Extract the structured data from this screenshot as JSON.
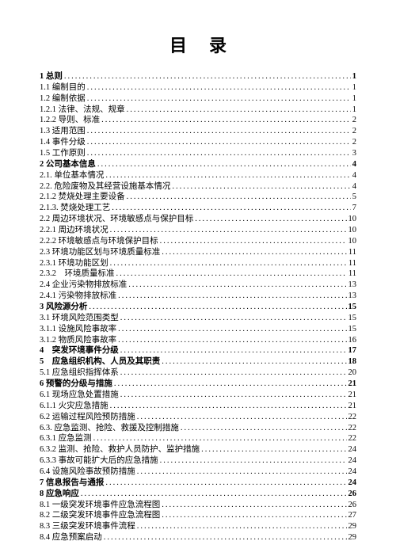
{
  "title": "目录",
  "entries": [
    {
      "label": "1 总则",
      "page": "1",
      "bold": true
    },
    {
      "label": "1.1 编制目的",
      "page": "1",
      "bold": false
    },
    {
      "label": "1.2 编制依据",
      "page": "1",
      "bold": false
    },
    {
      "label": "1.2.1 法律、法规、规章",
      "page": "1",
      "bold": false
    },
    {
      "label": "1.2.2 导则、标准",
      "page": "2",
      "bold": false
    },
    {
      "label": "1.3 适用范围",
      "page": "2",
      "bold": false
    },
    {
      "label": "1.4 事件分级",
      "page": "2",
      "bold": false
    },
    {
      "label": "1.5 工作原则",
      "page": "3",
      "bold": false
    },
    {
      "label": "2 公司基本信息",
      "page": "4",
      "bold": true
    },
    {
      "label": "2.1. 单位基本情况",
      "page": "4",
      "bold": false
    },
    {
      "label": "2.2. 危险废物及其经营设施基本情况",
      "page": "4",
      "bold": false
    },
    {
      "label": "2.1.2 焚烧处理主要设备",
      "page": "5",
      "bold": false
    },
    {
      "label": "2.1.3. 焚烧处理工艺",
      "page": "7",
      "bold": false
    },
    {
      "label": "2.2 周边环境状况、环境敏感点与保护目标",
      "page": "10",
      "bold": false
    },
    {
      "label": "2.2.1 周边环境状况",
      "page": "10",
      "bold": false
    },
    {
      "label": "2.2.2 环境敏感点与环境保护目标",
      "page": "10",
      "bold": false
    },
    {
      "label": "2.3 环境功能区划与环境质量标准",
      "page": "11",
      "bold": false
    },
    {
      "label": "2.3.1 环境功能区划",
      "page": "11",
      "bold": false
    },
    {
      "label": "2.3.2　环境质量标准",
      "page": "11",
      "bold": false
    },
    {
      "label": "2.4 企业污染物排放标准",
      "page": "13",
      "bold": false
    },
    {
      "label": "2.4.1 污染物排放标准",
      "page": "13",
      "bold": false
    },
    {
      "label": "3 风险源分析",
      "page": "15",
      "bold": true
    },
    {
      "label": "3.1 环境风险范围类型",
      "page": "15",
      "bold": false
    },
    {
      "label": "3.1.1 设施风险事故率",
      "page": "15",
      "bold": false
    },
    {
      "label": "3.1.2 物质风险事故率",
      "page": "16",
      "bold": false
    },
    {
      "label": "4　突发环境事件分级",
      "page": "17",
      "bold": true
    },
    {
      "label": "5　应急组织机构、人员及其职责",
      "page": "18",
      "bold": true
    },
    {
      "label": "5.1 应急组织指挥体系",
      "page": "20",
      "bold": false
    },
    {
      "label": "6 预警的分级与措施",
      "page": "21",
      "bold": true
    },
    {
      "label": "6.1 现场应急处置措施",
      "page": "21",
      "bold": false
    },
    {
      "label": "6.1.1 火灾应急措施",
      "page": "21",
      "bold": false
    },
    {
      "label": "6.2 运输过程风险预防措施",
      "page": "22",
      "bold": false
    },
    {
      "label": "6.3. 应急监测、抢险、救援及控制措施",
      "page": "22",
      "bold": false
    },
    {
      "label": "6.3.1 应急监测",
      "page": "22",
      "bold": false
    },
    {
      "label": "6.3.2 监测、抢险、救护人员防护、监护措施",
      "page": "24",
      "bold": false
    },
    {
      "label": "6.3.3 事故可能扩大后的应急措施",
      "page": "24",
      "bold": false
    },
    {
      "label": "6.4 设施风险事故预防措施",
      "page": "24",
      "bold": false
    },
    {
      "label": "7 信息报告与通报",
      "page": "24",
      "bold": true
    },
    {
      "label": "8 应急响应",
      "page": "26",
      "bold": true
    },
    {
      "label": "8.1 一级突发环境事件应急流程图",
      "page": "26",
      "bold": false
    },
    {
      "label": "8.2 二级突发环境事件应急流程图",
      "page": "27",
      "bold": false
    },
    {
      "label": "8.3 三级突发环境事件流程",
      "page": "29",
      "bold": false
    },
    {
      "label": "8.4 应急预案启动",
      "page": "29",
      "bold": false
    }
  ]
}
